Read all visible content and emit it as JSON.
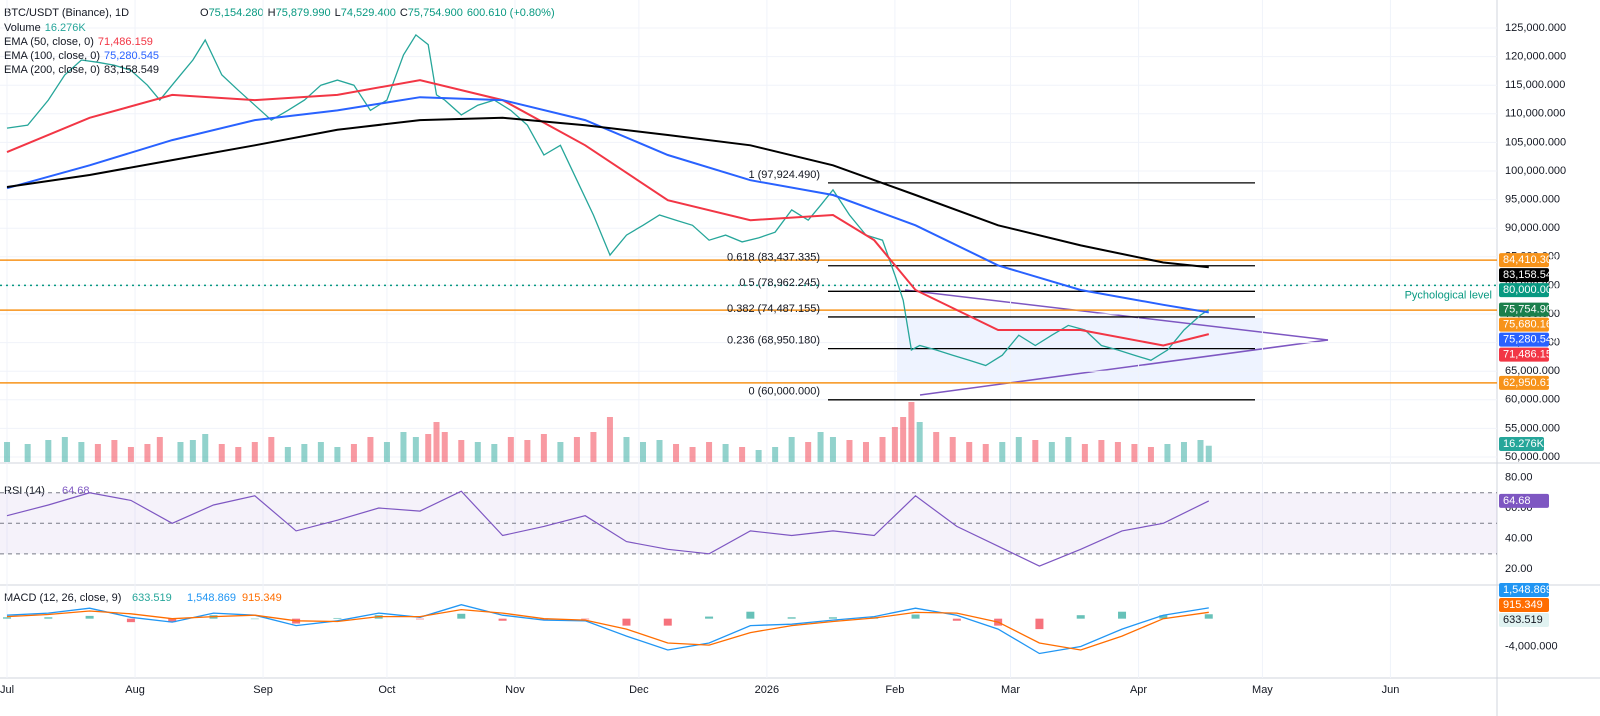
{
  "header": {
    "ohlc_labels": [
      "O",
      "H",
      "L",
      "C"
    ],
    "ohlc_values": [
      "75,154.280",
      "75,879.990",
      "74,529.400",
      "75,754.900"
    ],
    "change": "600.610 (+0.80%)"
  },
  "chart_data": [
    {
      "type": "line",
      "title": "BTC/USDT (Binance), 1D",
      "xlim": [
        -1.7,
        360.8
      ],
      "xticks": [
        {
          "value": 0,
          "label": "Jul"
        },
        {
          "value": 31,
          "label": "Aug"
        },
        {
          "value": 62,
          "label": "Sep"
        },
        {
          "value": 92,
          "label": "Oct"
        },
        {
          "value": 123,
          "label": "Nov"
        },
        {
          "value": 153,
          "label": "Dec"
        },
        {
          "value": 184,
          "label": "2026"
        },
        {
          "value": 215,
          "label": "Feb"
        },
        {
          "value": 243,
          "label": "Mar"
        },
        {
          "value": 274,
          "label": "Apr"
        },
        {
          "value": 304,
          "label": "May"
        },
        {
          "value": 335,
          "label": "Jun"
        }
      ],
      "ylim": [
        49126,
        129895
      ],
      "yticks": [
        {
          "value": 125000,
          "label": "125,000.000"
        },
        {
          "value": 120000,
          "label": "120,000.000"
        },
        {
          "value": 115000,
          "label": "115,000.000"
        },
        {
          "value": 110000,
          "label": "110,000.000"
        },
        {
          "value": 105000,
          "label": "105,000.000"
        },
        {
          "value": 100000,
          "label": "100,000.000"
        },
        {
          "value": 95000,
          "label": "95,000.000"
        },
        {
          "value": 90000,
          "label": "90,000.000"
        },
        {
          "value": 85000,
          "label": "85,000.000"
        },
        {
          "value": 80000,
          "label": "80,000.000"
        },
        {
          "value": 75000,
          "label": "75,000.000"
        },
        {
          "value": 70000,
          "label": "70,000.000"
        },
        {
          "value": 65000,
          "label": "65,000.000"
        },
        {
          "value": 60000,
          "label": "60,000.000"
        },
        {
          "value": 55000,
          "label": "55,000.000"
        },
        {
          "value": 50000,
          "label": "50,000.000"
        }
      ],
      "y2lim": [
        0,
        462
      ],
      "grid": true,
      "series": [
        {
          "name": "Volume",
          "value_label": "16.276K",
          "color": "#26a69a",
          "axis": "y2",
          "x": [
            0,
            5,
            10,
            14,
            18,
            22,
            26,
            30,
            34,
            37,
            42,
            45,
            48,
            52,
            56,
            60,
            64,
            68,
            72,
            76,
            80,
            84,
            88,
            92,
            96,
            99,
            102,
            104,
            106,
            110,
            114,
            118,
            122,
            126,
            130,
            134,
            138,
            142,
            146,
            150,
            154,
            158,
            162,
            166,
            170,
            174,
            178,
            182,
            186,
            190,
            194,
            197,
            200,
            204,
            208,
            212,
            215,
            217,
            219,
            221,
            225,
            229,
            233,
            237,
            241,
            245,
            249,
            253,
            257,
            261,
            265,
            269,
            273,
            277,
            281,
            285,
            289,
            291
          ],
          "values": [
            20,
            18,
            22,
            25,
            20,
            18,
            22,
            15,
            18,
            25,
            20,
            22,
            28,
            18,
            15,
            20,
            25,
            15,
            18,
            20,
            15,
            18,
            25,
            20,
            30,
            25,
            28,
            40,
            30,
            22,
            20,
            18,
            25,
            22,
            28,
            20,
            25,
            30,
            45,
            25,
            20,
            22,
            18,
            15,
            20,
            18,
            15,
            12,
            15,
            25,
            20,
            30,
            25,
            22,
            20,
            25,
            35,
            45,
            60,
            40,
            30,
            25,
            20,
            18,
            20,
            25,
            22,
            20,
            25,
            18,
            22,
            20,
            18,
            15,
            18,
            20,
            22,
            16.276
          ]
        },
        {
          "name": "Close",
          "color": "#26a69a",
          "x": [
            0,
            5,
            10,
            14,
            18,
            22,
            26,
            30,
            34,
            37,
            42,
            45,
            48,
            52,
            56,
            60,
            64,
            68,
            72,
            76,
            80,
            84,
            88,
            92,
            96,
            99,
            102,
            104,
            106,
            110,
            114,
            118,
            122,
            126,
            130,
            134,
            138,
            142,
            146,
            150,
            154,
            158,
            162,
            166,
            170,
            174,
            178,
            182,
            186,
            190,
            194,
            197,
            200,
            204,
            208,
            212,
            215,
            217,
            219,
            221,
            225,
            229,
            233,
            237,
            241,
            245,
            249,
            253,
            257,
            261,
            265,
            269,
            273,
            277,
            281,
            285,
            289,
            291
          ],
          "values": [
            107500,
            108000,
            112400,
            116800,
            119400,
            119000,
            118500,
            117600,
            115000,
            112400,
            116800,
            119400,
            122900,
            116800,
            114100,
            111500,
            108900,
            110600,
            112400,
            115000,
            115900,
            115000,
            110600,
            112400,
            120300,
            123800,
            122100,
            113300,
            112400,
            109800,
            111500,
            112400,
            110600,
            108000,
            102800,
            104500,
            98400,
            92300,
            85300,
            88800,
            90500,
            92300,
            91400,
            90500,
            87900,
            88800,
            87600,
            88300,
            89300,
            93200,
            91400,
            94000,
            96700,
            92300,
            88800,
            87900,
            81800,
            77400,
            68700,
            69500,
            68700,
            67800,
            66900,
            66000,
            67800,
            71300,
            69500,
            71300,
            73000,
            72200,
            69500,
            68700,
            67800,
            66900,
            68700,
            72200,
            74800,
            75754.9
          ]
        },
        {
          "name": "EMA (50, close, 0)",
          "value_label": "71,486.159",
          "color": "#f23645",
          "x": [
            0,
            20,
            40,
            60,
            80,
            100,
            120,
            140,
            160,
            180,
            200,
            210,
            220,
            240,
            260,
            280,
            291
          ],
          "values": [
            103300,
            109300,
            113300,
            112400,
            113300,
            115900,
            112400,
            104500,
            94900,
            91400,
            92300,
            87900,
            79200,
            72200,
            72200,
            69500,
            71486.159
          ]
        },
        {
          "name": "EMA (100, close, 0)",
          "value_label": "75,280.545",
          "color": "#2962ff",
          "x": [
            0,
            20,
            40,
            60,
            80,
            100,
            120,
            140,
            160,
            180,
            200,
            220,
            240,
            260,
            280,
            291
          ],
          "values": [
            97000,
            101000,
            105400,
            108900,
            110600,
            112900,
            112400,
            108900,
            102800,
            98400,
            95800,
            90500,
            83500,
            79200,
            76600,
            75280.545
          ]
        },
        {
          "name": "EMA (200, close, 0)",
          "value_label": "83,158.549",
          "color": "#000000",
          "x": [
            0,
            20,
            40,
            60,
            80,
            100,
            120,
            140,
            160,
            180,
            200,
            220,
            240,
            260,
            280,
            291
          ],
          "values": [
            97200,
            99300,
            101900,
            104500,
            107200,
            108900,
            109300,
            108000,
            106300,
            104500,
            101000,
            95800,
            90500,
            87000,
            84000,
            83158.549
          ]
        }
      ],
      "hlines": [
        {
          "value": 84410.302,
          "color": "#f7931a"
        },
        {
          "value": 80000,
          "color": "#089981",
          "annotation": "Pychological level"
        },
        {
          "value": 75680.16,
          "color": "#f7931a"
        },
        {
          "value": 62950.61,
          "color": "#f7931a"
        }
      ],
      "fib": [
        {
          "value": 97924.49,
          "label": "1 (97,924.490)"
        },
        {
          "value": 83437.335,
          "label": "0.618 (83,437.335)"
        },
        {
          "value": 78962.245,
          "label": "0.5 (78,962.245)"
        },
        {
          "value": 74487.155,
          "label": "0.382 (74,487.155)"
        },
        {
          "value": 68950.18,
          "label": "0.236 (68,950.180)"
        },
        {
          "value": 60000,
          "label": "0 (60,000.000)"
        }
      ],
      "price_labels": [
        {
          "value": 84410.302,
          "label": "84,410.302",
          "color": "#f7931a"
        },
        {
          "value": 83158.549,
          "label": "83,158.549",
          "color": "#000000"
        },
        {
          "value": 80000,
          "label": "80,000.000",
          "color": "#089981"
        },
        {
          "value": 75754.9,
          "label": "75,754.900",
          "color": "#1b7f4c"
        },
        {
          "value": 75680.16,
          "label": "75,680.160",
          "color": "#f7931a"
        },
        {
          "value": 75280.545,
          "label": "75,280.545",
          "color": "#2962ff"
        },
        {
          "value": 71486.159,
          "label": "71,486.159",
          "color": "#f23645"
        },
        {
          "value": 62950.61,
          "label": "62,950.610",
          "color": "#f7931a"
        }
      ]
    },
    {
      "type": "line",
      "title": "RSI (14)",
      "value_label": "64.68",
      "ylim": [
        9.6,
        84.9
      ],
      "yticks": [
        {
          "value": 80,
          "label": "80.00"
        },
        {
          "value": 60,
          "label": "60.00"
        },
        {
          "value": 40,
          "label": "40.00"
        },
        {
          "value": 20,
          "label": "20.00"
        }
      ],
      "levels": [
        70,
        50,
        30
      ],
      "series": [
        {
          "name": "RSI (14)",
          "color": "#7e57c2",
          "x": [
            0,
            10,
            20,
            30,
            40,
            50,
            60,
            70,
            80,
            90,
            100,
            110,
            120,
            130,
            140,
            150,
            160,
            170,
            180,
            190,
            200,
            210,
            220,
            230,
            240,
            250,
            260,
            270,
            280,
            291
          ],
          "values": [
            55,
            62,
            70,
            65,
            50,
            62,
            68,
            45,
            52,
            60,
            58,
            71,
            42,
            48,
            55,
            38,
            33,
            30,
            45,
            42,
            45,
            42,
            68,
            48,
            35,
            22,
            33,
            45,
            50,
            64.68
          ]
        }
      ],
      "price_labels": [
        {
          "value": 64.68,
          "label": "64.68",
          "color": "#7e57c2"
        }
      ]
    },
    {
      "type": "line",
      "title": "MACD (12, 26, close, 9)",
      "ylim": [
        -8235,
        4118
      ],
      "yticks": [
        {
          "value": -4000,
          "label": "-4,000.000"
        }
      ],
      "x": [
        0,
        10,
        20,
        30,
        40,
        50,
        60,
        70,
        80,
        90,
        100,
        110,
        120,
        130,
        140,
        150,
        160,
        170,
        180,
        190,
        200,
        210,
        220,
        230,
        240,
        250,
        260,
        270,
        280,
        291
      ],
      "series": [
        {
          "type": "bar",
          "value_label": "633.519",
          "color": "#26a69a",
          "values": [
            200,
            200,
            400,
            -500,
            -500,
            500,
            0,
            -700,
            100,
            500,
            -100,
            700,
            -300,
            -200,
            -100,
            -1000,
            -1000,
            300,
            1000,
            200,
            200,
            200,
            600,
            -300,
            -1000,
            -1500,
            500,
            1000,
            500,
            633.519
          ]
        },
        {
          "type": "line",
          "value_label": "1,548.869",
          "color": "#2196f3",
          "values": [
            500,
            800,
            1500,
            200,
            -500,
            800,
            500,
            -1000,
            -300,
            800,
            200,
            2000,
            500,
            -200,
            -300,
            -2500,
            -4500,
            -3500,
            -1000,
            -800,
            -200,
            300,
            1500,
            500,
            -1500,
            -5000,
            -4000,
            -1500,
            500,
            1548.869
          ]
        },
        {
          "type": "line",
          "value_label": "915.349",
          "color": "#ff6d00",
          "values": [
            300,
            600,
            1100,
            700,
            0,
            300,
            500,
            -300,
            -400,
            300,
            300,
            1300,
            800,
            0,
            -200,
            -1500,
            -3500,
            -3800,
            -2000,
            -1000,
            -400,
            100,
            900,
            800,
            -500,
            -3500,
            -4500,
            -2500,
            0,
            915.349
          ]
        }
      ]
    }
  ]
}
